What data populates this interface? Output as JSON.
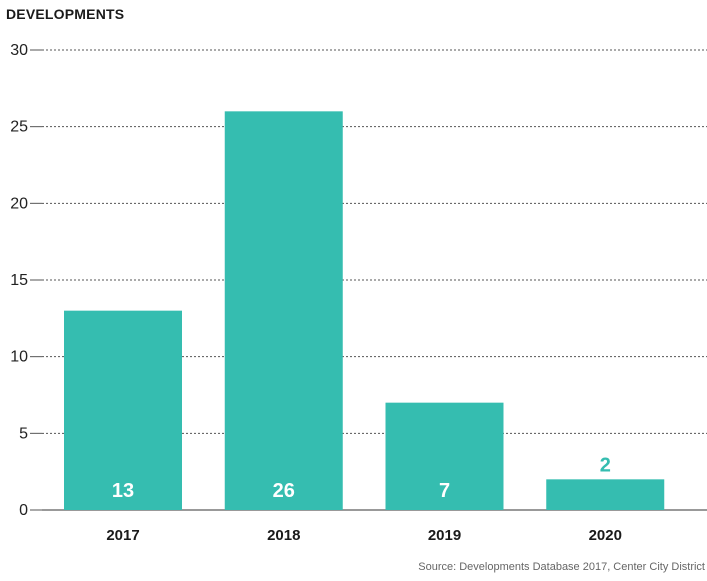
{
  "chart_data": {
    "type": "bar",
    "ylabel": "DEVELOPMENTS",
    "categories": [
      "2017",
      "2018",
      "2019",
      "2020"
    ],
    "values": [
      13,
      26,
      7,
      2
    ],
    "data_labels": [
      "13",
      "26",
      "7",
      "2"
    ],
    "ylim": [
      0,
      30
    ],
    "yticks": [
      0,
      5,
      10,
      15,
      20,
      25,
      30
    ],
    "grid": "dotted horizontal",
    "bar_color": "#35BDB0",
    "label_inside_color": "#ffffff",
    "label_outside_color": "#35BDB0",
    "source": "Source: Developments Database 2017, Center City District"
  }
}
